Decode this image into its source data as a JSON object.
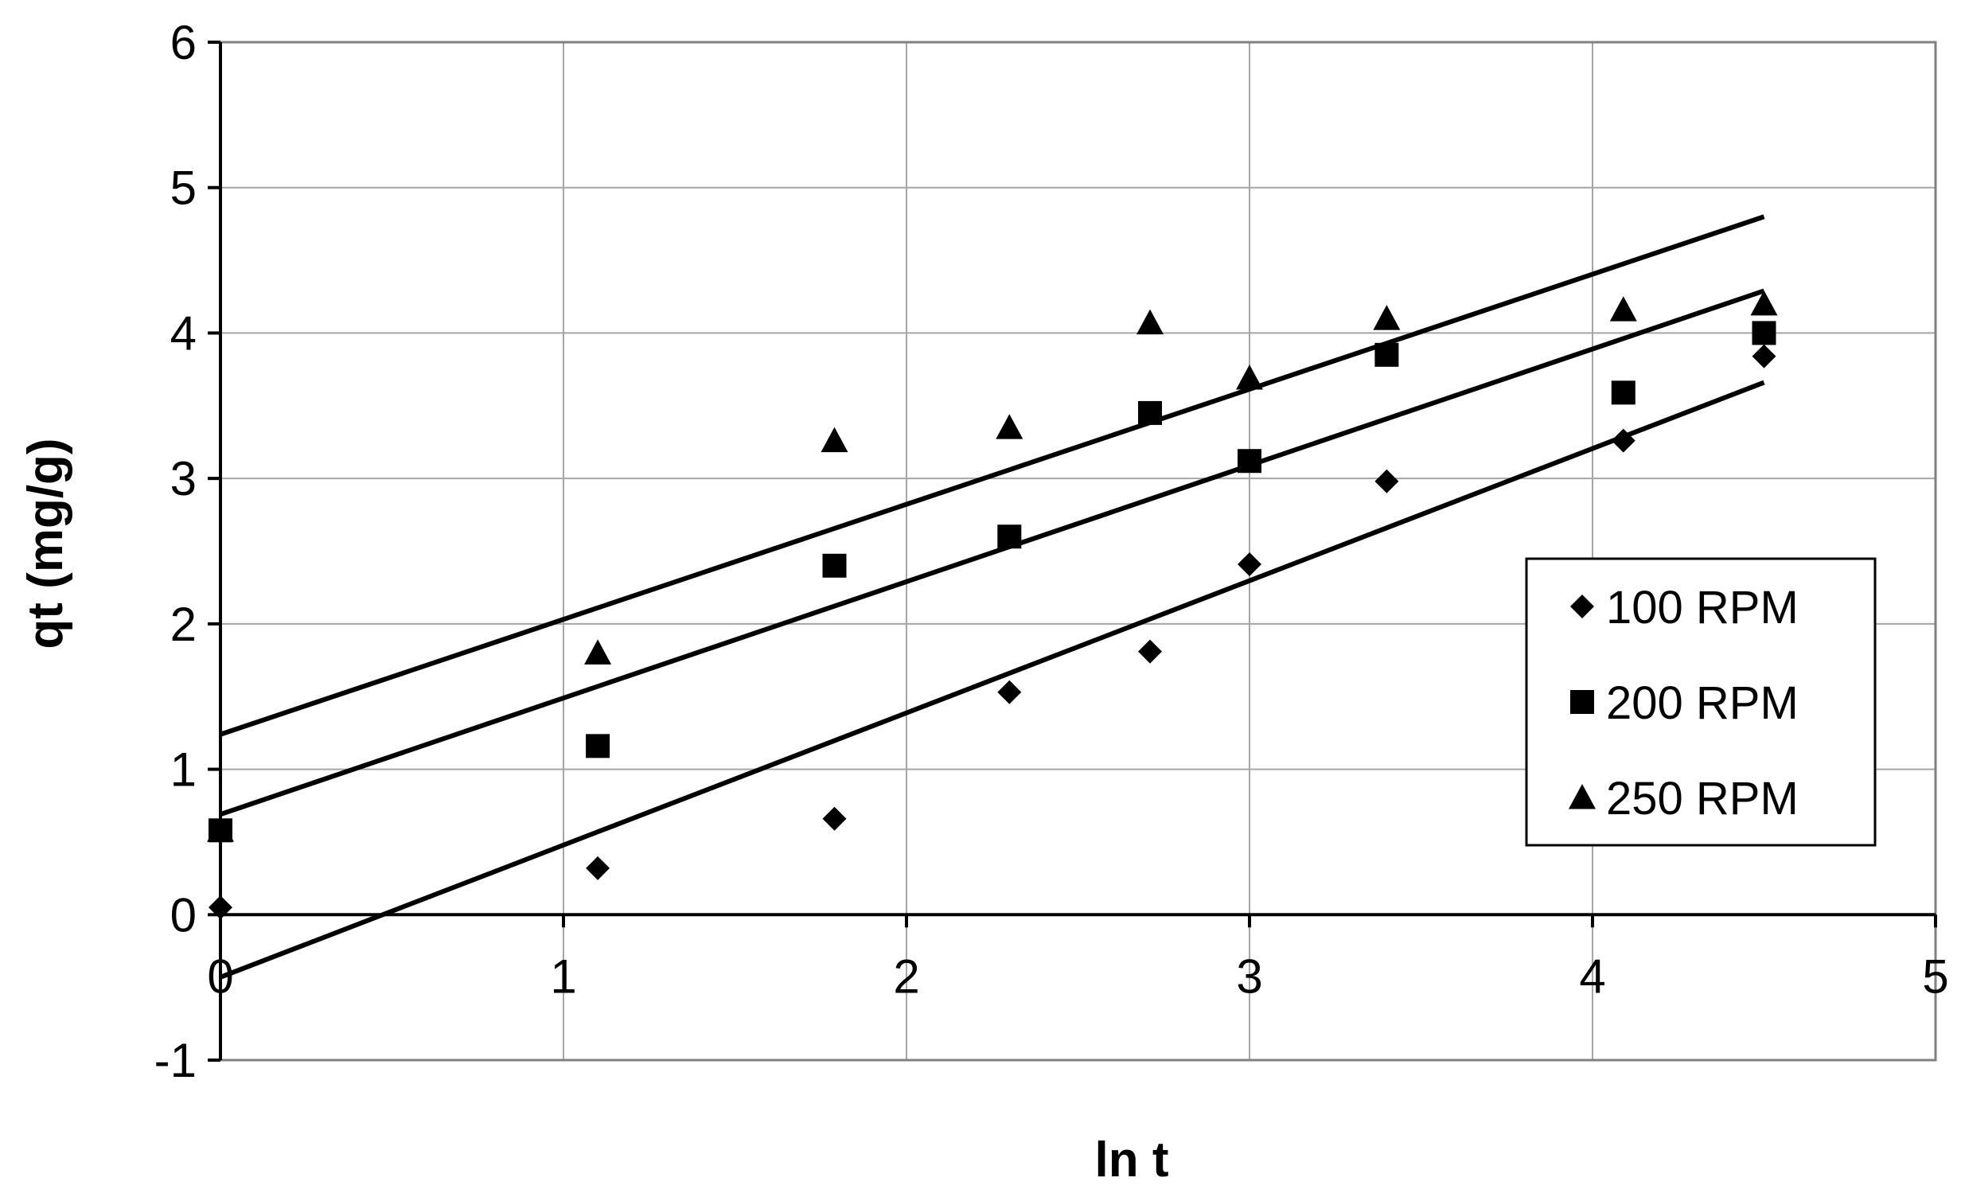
{
  "chart_data": {
    "type": "scatter",
    "title": "",
    "xlabel": "ln t",
    "ylabel": "qt (mg/g)",
    "xlim": [
      0,
      5
    ],
    "ylim": [
      -1,
      6
    ],
    "x_ticks": [
      "0",
      "1",
      "2",
      "3",
      "4",
      "5"
    ],
    "y_ticks": [
      "-1",
      "0",
      "1",
      "2",
      "3",
      "4",
      "5",
      "6"
    ],
    "grid": true,
    "legend_position": "right",
    "series": [
      {
        "name": "100 RPM",
        "marker": "diamond",
        "points": [
          [
            0,
            0.05
          ],
          [
            1.1,
            0.32
          ],
          [
            1.79,
            0.66
          ],
          [
            2.3,
            1.53
          ],
          [
            2.71,
            1.81
          ],
          [
            3.0,
            2.41
          ],
          [
            3.4,
            2.98
          ],
          [
            4.09,
            3.26
          ],
          [
            4.5,
            3.84
          ]
        ],
        "trendline": [
          [
            0,
            -0.43
          ],
          [
            4.5,
            3.66
          ]
        ]
      },
      {
        "name": "200 RPM",
        "marker": "square",
        "points": [
          [
            0,
            0.58
          ],
          [
            1.1,
            1.16
          ],
          [
            1.79,
            2.4
          ],
          [
            2.3,
            2.6
          ],
          [
            2.71,
            3.45
          ],
          [
            3.0,
            3.12
          ],
          [
            3.4,
            3.85
          ],
          [
            4.09,
            3.59
          ],
          [
            4.5,
            4.0
          ]
        ],
        "trendline": [
          [
            0,
            0.69
          ],
          [
            4.5,
            4.29
          ]
        ]
      },
      {
        "name": "250 RPM",
        "marker": "triangle",
        "points": [
          [
            0,
            0.58
          ],
          [
            1.1,
            1.8
          ],
          [
            1.79,
            3.26
          ],
          [
            2.3,
            3.35
          ],
          [
            2.71,
            4.07
          ],
          [
            3.0,
            3.69
          ],
          [
            3.4,
            4.1
          ],
          [
            4.09,
            4.16
          ],
          [
            4.5,
            4.2
          ]
        ],
        "trendline": [
          [
            0,
            1.24
          ],
          [
            4.5,
            4.8
          ]
        ]
      }
    ]
  }
}
